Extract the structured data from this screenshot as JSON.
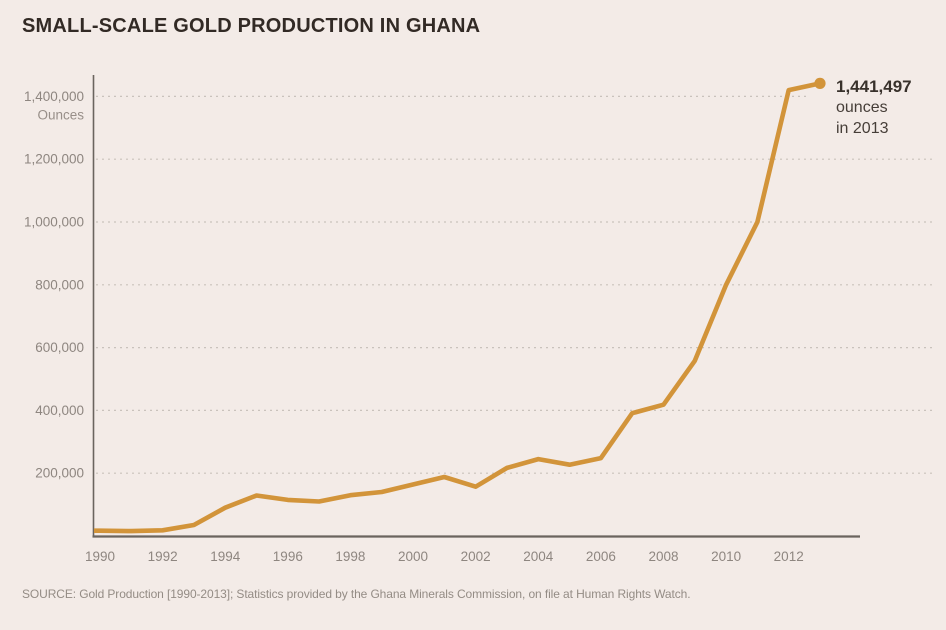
{
  "title": "SMALL-SCALE GOLD PRODUCTION IN GHANA",
  "annotation": {
    "value": "1,441,497",
    "unit": "ounces",
    "year": "in 2013"
  },
  "source": "SOURCE: Gold Production [1990-2013]; Statistics provided by the Ghana Minerals Commission, on file at Human Rights Watch.",
  "colors": {
    "background": "#f3ebe7",
    "line": "#D2943A",
    "axis": "#6a645e",
    "grid": "#c9c2bc",
    "tick_text": "#8e8680",
    "title_text": "#322a25",
    "annotation_text": "#463e38",
    "source_text": "#948c85"
  },
  "chart_data": {
    "type": "line",
    "title": "SMALL-SCALE GOLD PRODUCTION IN GHANA",
    "xlabel": "",
    "ylabel": "Ounces",
    "x": [
      1990,
      1991,
      1992,
      1993,
      1994,
      1995,
      1996,
      1997,
      1998,
      1999,
      2000,
      2001,
      2002,
      2003,
      2004,
      2005,
      2006,
      2007,
      2008,
      2009,
      2010,
      2011,
      2012,
      2013
    ],
    "values": [
      17000,
      15500,
      18000,
      35000,
      90000,
      129000,
      115000,
      110000,
      130000,
      140000,
      164000,
      188000,
      157000,
      217000,
      245000,
      227000,
      248000,
      391000,
      418000,
      558000,
      800000,
      1000000,
      1420000,
      1441497
    ],
    "series_name": "Small-scale gold production (ounces)",
    "ylim": [
      0,
      1480000
    ],
    "ytick_values": [
      200000,
      400000,
      600000,
      800000,
      1000000,
      1200000,
      1400000
    ],
    "ytick_labels": [
      "200,000",
      "400,000",
      "600,000",
      "800,000",
      "1,000,000",
      "1,200,000",
      "1,400,000"
    ],
    "xtick_years": [
      1990,
      1992,
      1994,
      1996,
      1998,
      2000,
      2002,
      2004,
      2006,
      2008,
      2010,
      2012
    ],
    "xtick_labels": [
      "1990",
      "1992",
      "1994",
      "1996",
      "1998",
      "2000",
      "2002",
      "2004",
      "2006",
      "2008",
      "2010",
      "2012"
    ],
    "grid": "horizontal-dashed",
    "legend": "none",
    "line_color": "#D2943A",
    "annotation": {
      "text": "1,441,497 ounces in 2013",
      "x": 2013,
      "y": 1441497
    }
  }
}
